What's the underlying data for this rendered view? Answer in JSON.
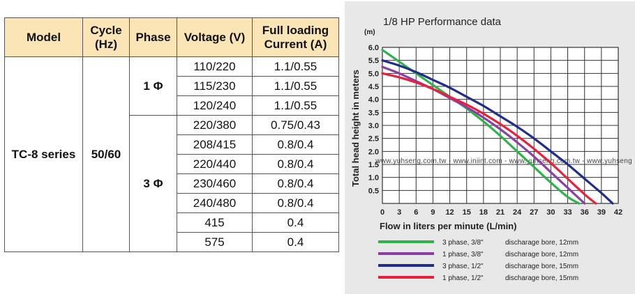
{
  "table": {
    "headers": [
      "Model",
      "Cycle\n(Hz)",
      "Phase",
      "Voltage (V)",
      "Full loading\nCurrent (A)"
    ],
    "model": "TC-8 series",
    "cycle": "50/60",
    "phase_single": "1 Φ",
    "phase_three": "3 Φ",
    "rows": [
      {
        "voltage": "110/220",
        "current": "1.1/0.55"
      },
      {
        "voltage": "115/230",
        "current": "1.1/0.55"
      },
      {
        "voltage": "120/240",
        "current": "1.1/0.55"
      },
      {
        "voltage": "220/380",
        "current": "0.75/0.43"
      },
      {
        "voltage": "208/415",
        "current": "0.8/0.4"
      },
      {
        "voltage": "220/440",
        "current": "0.8/0.4"
      },
      {
        "voltage": "230/460",
        "current": "0.8/0.4"
      },
      {
        "voltage": "240/480",
        "current": "0.8/0.4"
      },
      {
        "voltage": "415",
        "current": "0.4"
      },
      {
        "voltage": "575",
        "current": "0.4"
      }
    ]
  },
  "chart_data": {
    "type": "line",
    "title": "1/8 HP Performance data",
    "xlabel": "Flow in liters per minute (L/min)",
    "ylabel": "Total head height in meters",
    "yunit": "(m)",
    "xlim": [
      0,
      42
    ],
    "ylim": [
      0,
      6.0
    ],
    "xticks": [
      0,
      3,
      6,
      9,
      12,
      15,
      18,
      21,
      24,
      27,
      30,
      33,
      36,
      39,
      42
    ],
    "yticks": [
      0.5,
      1.0,
      1.5,
      2.0,
      2.5,
      3.0,
      3.5,
      4.0,
      4.5,
      5.0,
      5.5,
      6.0
    ],
    "grid": true,
    "watermark": "www.yuhseng.com.tw - www.iniint.com - www.yuhseng.com.tw - www.yuhseng",
    "series": [
      {
        "name": "3 phase, 3/8\"",
        "note": "discharage bore, 12mm",
        "color": "#2db34a",
        "x": [
          0,
          3,
          6,
          9,
          12,
          15,
          18,
          21,
          24,
          27,
          30,
          33,
          35
        ],
        "y": [
          5.9,
          5.45,
          5.0,
          4.55,
          4.1,
          3.65,
          3.15,
          2.6,
          2.0,
          1.4,
          0.8,
          0.25,
          0
        ]
      },
      {
        "name": "1 phase, 3/8\"",
        "note": "discharage bore, 12mm",
        "color": "#8b3fa6",
        "x": [
          0,
          3,
          6,
          9,
          12,
          15,
          18,
          21,
          24,
          27,
          30,
          33,
          36
        ],
        "y": [
          5.25,
          5.0,
          4.7,
          4.4,
          4.05,
          3.7,
          3.3,
          2.85,
          2.35,
          1.8,
          1.2,
          0.6,
          0
        ]
      },
      {
        "name": "3 phase, 1/2\"",
        "note": "discharage bore, 15mm",
        "color": "#1f2d8c",
        "x": [
          0,
          3,
          6,
          9,
          12,
          15,
          18,
          21,
          24,
          27,
          30,
          33,
          36,
          39,
          41
        ],
        "y": [
          5.5,
          5.3,
          5.05,
          4.75,
          4.45,
          4.1,
          3.75,
          3.35,
          2.95,
          2.5,
          2.0,
          1.5,
          0.95,
          0.4,
          0
        ]
      },
      {
        "name": "1 phase, 1/2\"",
        "note": "discharage bore, 15mm",
        "color": "#e8203a",
        "x": [
          0,
          3,
          6,
          9,
          12,
          15,
          18,
          21,
          24,
          27,
          30,
          33,
          36,
          38
        ],
        "y": [
          5.0,
          4.85,
          4.65,
          4.4,
          4.1,
          3.8,
          3.45,
          3.05,
          2.6,
          2.1,
          1.55,
          0.95,
          0.35,
          0
        ]
      }
    ]
  }
}
